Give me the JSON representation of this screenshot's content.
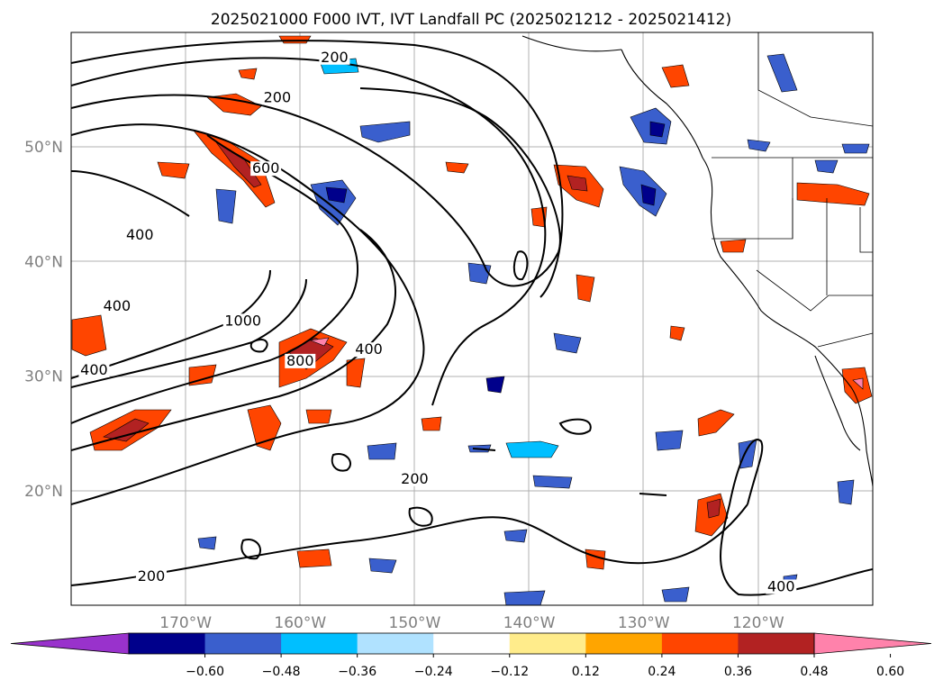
{
  "title": "2025021000 F000 IVT, IVT Landfall PC (2025021212 - 2025021412)",
  "map": {
    "lon_range": [
      -180,
      -110
    ],
    "lat_range": [
      10,
      60
    ],
    "lon_ticks": [
      {
        "lon": -170,
        "label": "170°W"
      },
      {
        "lon": -160,
        "label": "160°W"
      },
      {
        "lon": -150,
        "label": "150°W"
      },
      {
        "lon": -140,
        "label": "140°W"
      },
      {
        "lon": -130,
        "label": "130°W"
      },
      {
        "lon": -120,
        "label": "120°W"
      }
    ],
    "lat_ticks": [
      {
        "lat": 50,
        "label": "50°N"
      },
      {
        "lat": 40,
        "label": "40°N"
      },
      {
        "lat": 30,
        "label": "30°N"
      },
      {
        "lat": 20,
        "label": "20°N"
      }
    ],
    "grid": true
  },
  "contour_labels": [
    {
      "text": "200",
      "lon": -173,
      "lat": 12.2
    },
    {
      "text": "400",
      "lon": -174,
      "lat": 42.0
    },
    {
      "text": "400",
      "lon": -176,
      "lat": 35.8
    },
    {
      "text": "400",
      "lon": -178,
      "lat": 30.2
    },
    {
      "text": "1000",
      "lon": -165,
      "lat": 34.5
    },
    {
      "text": "600",
      "lon": -163,
      "lat": 47.8
    },
    {
      "text": "200",
      "lon": -162,
      "lat": 54.0
    },
    {
      "text": "200",
      "lon": -157,
      "lat": 57.5
    },
    {
      "text": "800",
      "lon": -160,
      "lat": 31.0
    },
    {
      "text": "400",
      "lon": -154,
      "lat": 32.0
    },
    {
      "text": "200",
      "lon": -150,
      "lat": 20.7
    },
    {
      "text": "400",
      "lon": -118,
      "lat": 11.3
    }
  ],
  "colorbar": {
    "tick_labels": [
      "−0.60",
      "−0.48",
      "−0.36",
      "−0.24",
      "−0.12",
      "0.12",
      "0.24",
      "0.36",
      "0.48",
      "0.60"
    ],
    "colors": {
      "under": "#9932CC",
      "bins": [
        "#00008B",
        "#3A5FCD",
        "#00BFFF",
        "#B0E2FF",
        "#FFFFFF",
        "#FFEC8B",
        "#FFA500",
        "#FF4500",
        "#B22222"
      ],
      "over": "#FF82AB"
    }
  },
  "colors": {
    "land_line": "#000000",
    "grid": "#b0b0b0",
    "contour": "#000000"
  }
}
